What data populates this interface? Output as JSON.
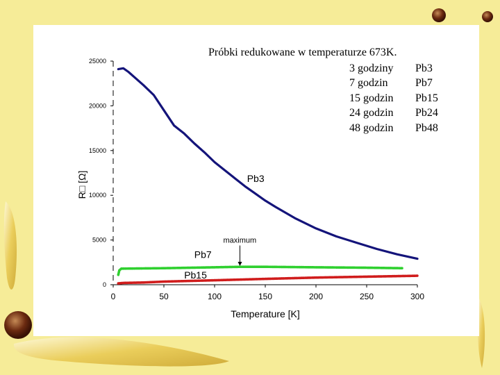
{
  "colors": {
    "background": "#f6ec98",
    "pb3": "#14147a",
    "pb7": "#2fd02f",
    "pb15": "#d01c1c"
  },
  "header": {
    "title": "Próbki redukowane w temperaturze  673K."
  },
  "legend_table": [
    {
      "time": "3 godziny",
      "sample": "Pb3"
    },
    {
      "time": "7 godzin",
      "sample": "Pb7"
    },
    {
      "time": "15 godzin",
      "sample": "Pb15"
    },
    {
      "time": "24 godzin",
      "sample": "Pb24"
    },
    {
      "time": "48 godzin",
      "sample": "Pb48"
    }
  ],
  "chart_data": {
    "type": "line",
    "title": "Próbki redukowane w temperaturze  673K.",
    "xlabel": "Temperature [K]",
    "ylabel": "R□ [Ω]",
    "xlim": [
      0,
      300
    ],
    "ylim": [
      0,
      25000
    ],
    "xticks": [
      "0",
      "50",
      "100",
      "150",
      "200",
      "250",
      "300"
    ],
    "yticks": [
      "0",
      "5000",
      "10000",
      "15000",
      "20000",
      "25000"
    ],
    "series": [
      {
        "name": "Pb3",
        "color": "#14147a",
        "x": [
          5,
          10,
          15,
          20,
          30,
          40,
          50,
          60,
          70,
          80,
          90,
          100,
          110,
          120,
          130,
          140,
          150,
          160,
          180,
          200,
          220,
          240,
          260,
          280,
          300
        ],
        "y": [
          24100,
          24200,
          23800,
          23300,
          22300,
          21200,
          19500,
          17800,
          16900,
          15800,
          14800,
          13700,
          12800,
          11900,
          11000,
          10200,
          9400,
          8700,
          7400,
          6300,
          5400,
          4700,
          4000,
          3400,
          2900
        ]
      },
      {
        "name": "Pb7",
        "color": "#2fd02f",
        "x": [
          5,
          6,
          8,
          10,
          50,
          100,
          125,
          150,
          200,
          250,
          285
        ],
        "y": [
          1100,
          1600,
          1800,
          1800,
          1850,
          1950,
          2000,
          2000,
          1950,
          1900,
          1850
        ]
      },
      {
        "name": "Pb15",
        "color": "#d01c1c",
        "x": [
          5,
          10,
          30,
          50,
          100,
          150,
          200,
          250,
          300
        ],
        "y": [
          150,
          200,
          250,
          350,
          500,
          650,
          800,
          900,
          1000
        ]
      }
    ],
    "annotations": [
      {
        "text": "Pb3",
        "x": 132,
        "y": 11500
      },
      {
        "text": "Pb7",
        "x": 80,
        "y": 3000
      },
      {
        "text": "Pb15",
        "x": 70,
        "y": 700
      },
      {
        "text": "maximum",
        "x": 125,
        "y": 4700,
        "arrow_to": [
          125,
          2100
        ]
      }
    ]
  }
}
